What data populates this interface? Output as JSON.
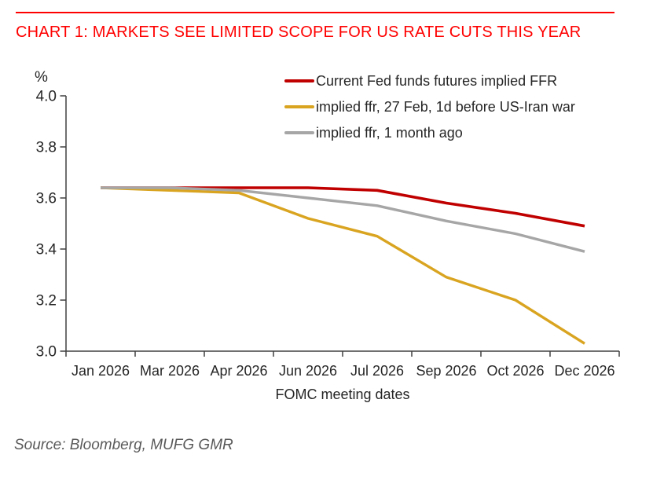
{
  "chart_data": {
    "type": "line",
    "title": "CHART 1: MARKETS SEE LIMITED SCOPE FOR US RATE CUTS THIS YEAR",
    "xlabel": "FOMC meeting dates",
    "ylabel": "%",
    "ylim": [
      3.0,
      4.0
    ],
    "ytick_step": 0.2,
    "yticks": [
      3.0,
      3.2,
      3.4,
      3.6,
      3.8,
      4.0
    ],
    "grid": false,
    "legend_position": "top-right",
    "categories": [
      "Jan 2026",
      "Mar 2026",
      "Apr 2026",
      "Jun 2026",
      "Jul 2026",
      "Sep 2026",
      "Oct 2026",
      "Dec 2026"
    ],
    "series": [
      {
        "name": "Current Fed funds futures implied FFR",
        "color": "#C00000",
        "values": [
          3.64,
          3.64,
          3.64,
          3.64,
          3.63,
          3.58,
          3.54,
          3.49
        ]
      },
      {
        "name": "implied ffr, 27 Feb, 1d before US-Iran war",
        "color": "#D9A420",
        "values": [
          3.64,
          3.63,
          3.62,
          3.52,
          3.45,
          3.29,
          3.2,
          3.03
        ]
      },
      {
        "name": "implied ffr, 1 month ago",
        "color": "#A6A6A6",
        "values": [
          3.64,
          3.64,
          3.63,
          3.6,
          3.57,
          3.51,
          3.46,
          3.39
        ]
      }
    ]
  },
  "source": "Source: Bloomberg, MUFG GMR",
  "colors": {
    "title_red": "#FF0000",
    "rule_red": "#FF0000",
    "axis": "#404040",
    "tick_label": "#262626",
    "source_text": "#595959"
  }
}
